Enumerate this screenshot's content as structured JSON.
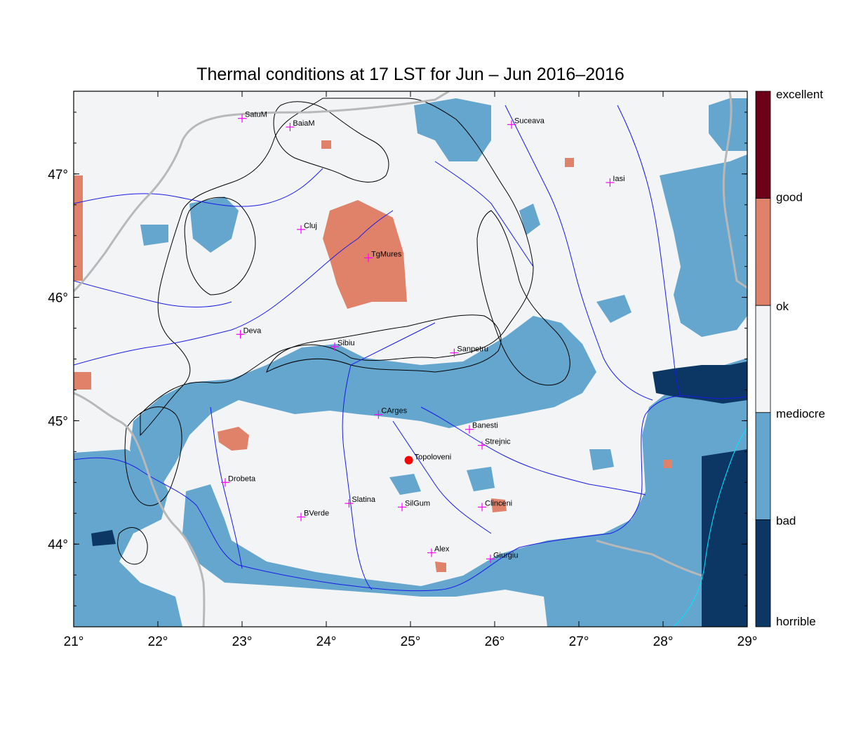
{
  "title": "Thermal conditions at 17 LST for Jun – Jun  2016–2016",
  "map": {
    "lon_range": [
      21,
      29
    ],
    "lat_range": [
      43.33,
      47.67
    ],
    "lon_ticks": [
      "21°",
      "22°",
      "23°",
      "24°",
      "25°",
      "26°",
      "27°",
      "28°",
      "29°"
    ],
    "lat_ticks": [
      "44°",
      "45°",
      "46°",
      "47°"
    ],
    "colors": {
      "ok": "#f2f4f6",
      "bad": "#64a6cd",
      "horrible": "#0c3764",
      "good": "#e0826a",
      "excellent": "#6b0016",
      "river": "#1a1ae6",
      "border": "#b8b8b8",
      "contour": "#000000",
      "lake": "#00e6ff",
      "city_marker": "#ff00ff",
      "point_marker": "#ff0000"
    },
    "cities": [
      {
        "name": "SatuM",
        "lon": 23.0,
        "lat": 47.45
      },
      {
        "name": "BaiaM",
        "lon": 23.57,
        "lat": 47.38
      },
      {
        "name": "Suceava",
        "lon": 26.2,
        "lat": 47.4
      },
      {
        "name": "Iasi",
        "lon": 27.37,
        "lat": 46.93
      },
      {
        "name": "Cluj",
        "lon": 23.7,
        "lat": 46.55
      },
      {
        "name": "TgMures",
        "lon": 24.5,
        "lat": 46.32
      },
      {
        "name": "Deva",
        "lon": 22.98,
        "lat": 45.7
      },
      {
        "name": "Sibiu",
        "lon": 24.1,
        "lat": 45.6
      },
      {
        "name": "Sanpetru",
        "lon": 25.52,
        "lat": 45.55
      },
      {
        "name": "CArges",
        "lon": 24.62,
        "lat": 45.05
      },
      {
        "name": "Banesti",
        "lon": 25.7,
        "lat": 44.93
      },
      {
        "name": "Strejnic",
        "lon": 25.85,
        "lat": 44.8
      },
      {
        "name": "Drobeta",
        "lon": 22.8,
        "lat": 44.5
      },
      {
        "name": "Slatina",
        "lon": 24.27,
        "lat": 44.33
      },
      {
        "name": "SilGum",
        "lon": 24.9,
        "lat": 44.3
      },
      {
        "name": "Clinceni",
        "lon": 25.85,
        "lat": 44.3
      },
      {
        "name": "BVerde",
        "lon": 23.7,
        "lat": 44.22
      },
      {
        "name": "Alex",
        "lon": 25.25,
        "lat": 43.93
      },
      {
        "name": "Giurgiu",
        "lon": 25.95,
        "lat": 43.88
      }
    ],
    "point": {
      "name": "Topoloveni",
      "lon": 24.98,
      "lat": 44.68
    }
  },
  "legend": {
    "classes": [
      {
        "label": "excellent",
        "color": "#6b0016"
      },
      {
        "label": "good",
        "color": "#e0826a"
      },
      {
        "label": "ok",
        "color": "#f2f4f6"
      },
      {
        "label": "mediocre",
        "color": "#64a6cd"
      },
      {
        "label": "bad",
        "color": "#64a6cd"
      },
      {
        "label": "horrible",
        "color": "#0c3764"
      }
    ]
  }
}
